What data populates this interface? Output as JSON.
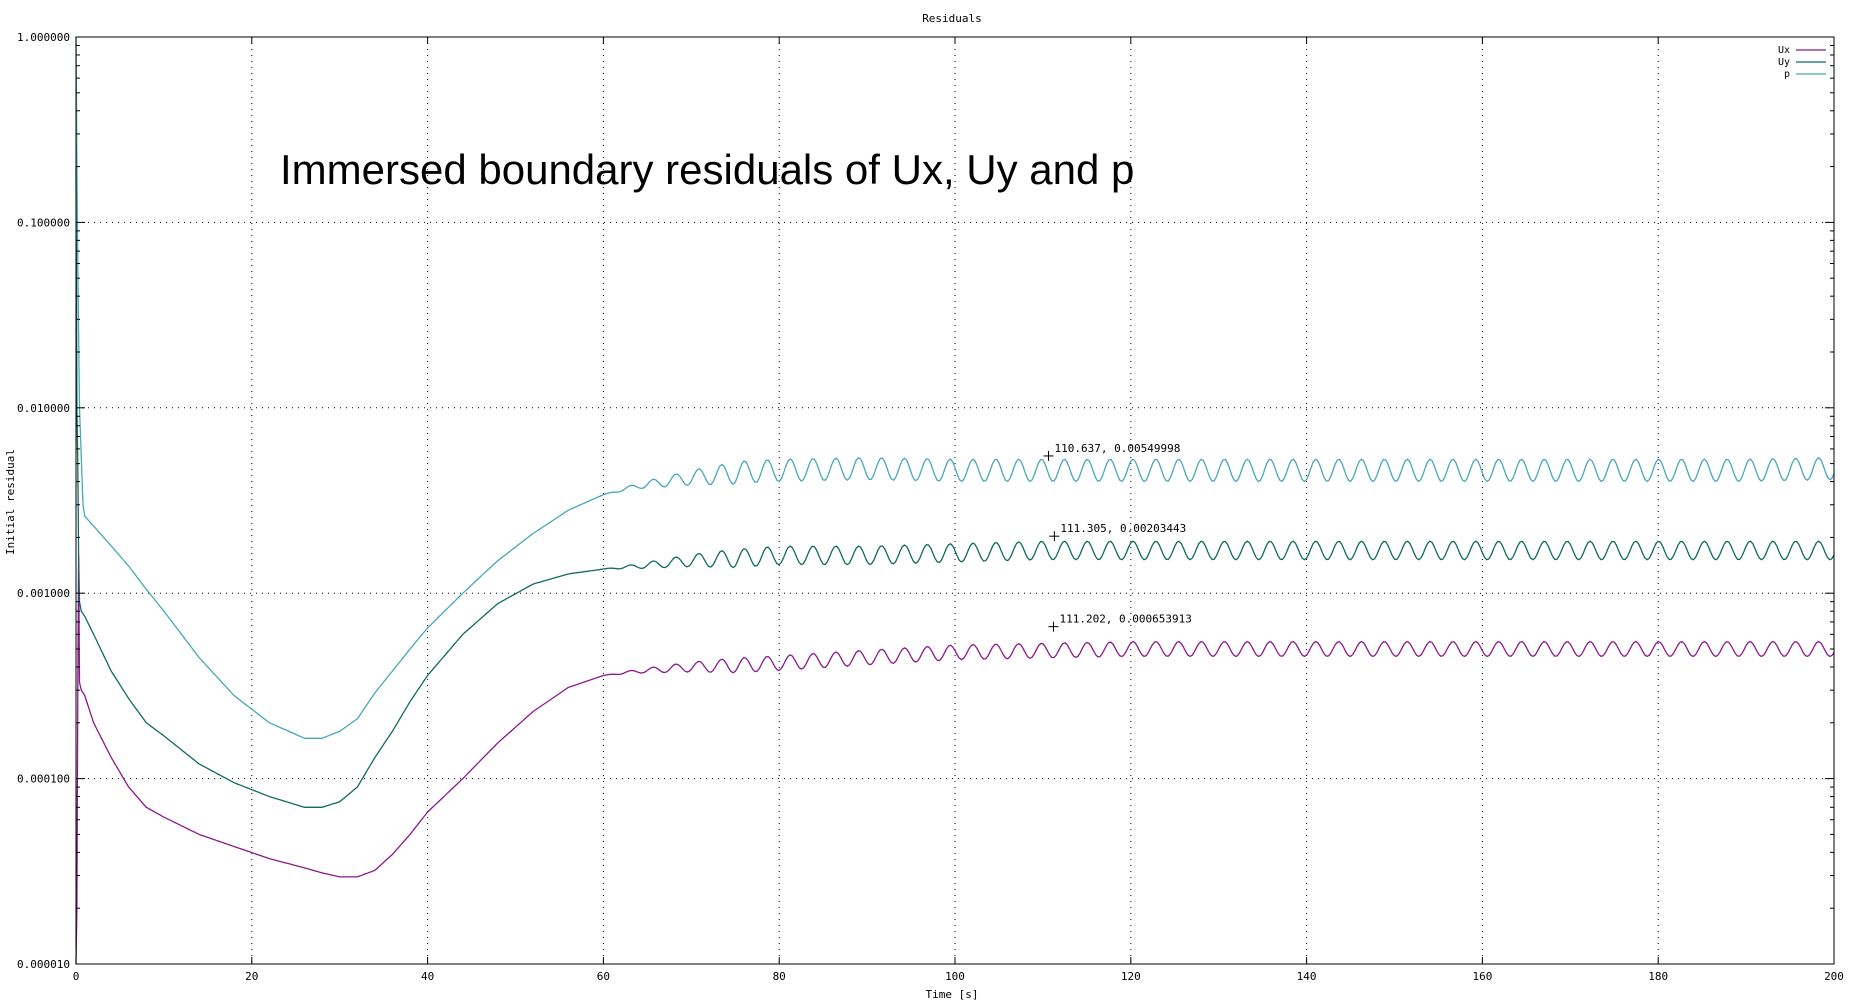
{
  "chart_data": {
    "type": "line",
    "title": "Residuals",
    "xlabel": "Time [s]",
    "ylabel": "Initial residual",
    "annotation_text": "Immersed boundary residuals of Ux, Uy and p",
    "xlim": [
      0,
      200
    ],
    "ylim": [
      1e-05,
      1
    ],
    "yscale": "log",
    "grid": true,
    "legend_position": "top-right",
    "x_ticks": [
      "0",
      "20",
      "40",
      "60",
      "80",
      "100",
      "120",
      "140",
      "160",
      "180",
      "200"
    ],
    "x_tick_values": [
      0,
      20,
      40,
      60,
      80,
      100,
      120,
      140,
      160,
      180,
      200
    ],
    "y_ticks": [
      "1.000000",
      "0.100000",
      "0.010000",
      "0.001000",
      "0.000100",
      "0.000010"
    ],
    "y_tick_values": [
      1,
      0.1,
      0.01,
      0.001,
      0.0001,
      1e-05
    ],
    "series": [
      {
        "name": "Ux",
        "color": "#8b1a89",
        "x": [
          0,
          0.1,
          0.2,
          0.3,
          0.4,
          0.6,
          1,
          2,
          4,
          6,
          8,
          10,
          14,
          18,
          22,
          26,
          28,
          30,
          32,
          34,
          36,
          38,
          40,
          44,
          48,
          52,
          56,
          60,
          64,
          70,
          76,
          80,
          90,
          100,
          110,
          120,
          130,
          140,
          150,
          160,
          170,
          180,
          190,
          200
        ],
        "y": [
          1e-05,
          2e-05,
          0.0003,
          0.0016,
          0.00033,
          0.0003,
          0.00028,
          0.0002,
          0.00013,
          9e-05,
          7e-05,
          6.2e-05,
          5e-05,
          4.3e-05,
          3.7e-05,
          3.3e-05,
          3.1e-05,
          2.95e-05,
          2.95e-05,
          3.2e-05,
          3.9e-05,
          5e-05,
          6.6e-05,
          0.0001,
          0.000156,
          0.00023,
          0.00031,
          0.00036,
          0.00038,
          0.0004,
          0.00041,
          0.00042,
          0.00045,
          0.00048,
          0.00049,
          0.0005,
          0.0005,
          0.0005,
          0.0005,
          0.0005,
          0.0005,
          0.0005,
          0.0005,
          0.0005
        ],
        "wave": 0.04
      },
      {
        "name": "Uy",
        "color": "#106a5e",
        "x": [
          0,
          0.1,
          0.2,
          0.3,
          0.4,
          0.6,
          1,
          2,
          4,
          6,
          8,
          10,
          14,
          18,
          22,
          26,
          28,
          30,
          32,
          34,
          36,
          38,
          40,
          44,
          48,
          52,
          56,
          60,
          64,
          70,
          76,
          80,
          90,
          100,
          110,
          120,
          130,
          140,
          150,
          160,
          170,
          180,
          190,
          200
        ],
        "y": [
          0.2,
          0.01,
          0.005,
          0.0016,
          0.0009,
          0.0008,
          0.00075,
          0.0006,
          0.00038,
          0.00027,
          0.0002,
          0.00017,
          0.00012,
          9.5e-05,
          8e-05,
          7e-05,
          7e-05,
          7.5e-05,
          9e-05,
          0.00013,
          0.00018,
          0.00026,
          0.00036,
          0.0006,
          0.00088,
          0.00112,
          0.00127,
          0.00135,
          0.0014,
          0.0015,
          0.00155,
          0.0016,
          0.0016,
          0.00165,
          0.0017,
          0.0017,
          0.0017,
          0.0017,
          0.0017,
          0.0017,
          0.0017,
          0.0017,
          0.0017,
          0.0017
        ],
        "wave": 0.05
      },
      {
        "name": "p",
        "color": "#48a8b8",
        "x": [
          0,
          0.05,
          0.1,
          0.2,
          0.4,
          0.8,
          1,
          2,
          4,
          6,
          8,
          10,
          14,
          18,
          22,
          26,
          28,
          30,
          32,
          34,
          36,
          38,
          40,
          44,
          48,
          52,
          56,
          60,
          64,
          70,
          76,
          80,
          90,
          100,
          110,
          120,
          130,
          140,
          150,
          160,
          170,
          180,
          190,
          200
        ],
        "y": [
          1,
          0.5,
          0.2,
          0.06,
          0.01,
          0.003,
          0.0026,
          0.0023,
          0.0018,
          0.0014,
          0.00105,
          0.0008,
          0.00045,
          0.00028,
          0.0002,
          0.000165,
          0.000165,
          0.00018,
          0.00021,
          0.00029,
          0.00038,
          0.0005,
          0.00065,
          0.001,
          0.0015,
          0.0021,
          0.0028,
          0.0034,
          0.0038,
          0.0042,
          0.0045,
          0.0046,
          0.0047,
          0.0046,
          0.0046,
          0.0046,
          0.0046,
          0.0046,
          0.0046,
          0.0046,
          0.0046,
          0.0046,
          0.0046,
          0.0047
        ],
        "wave": 0.06
      }
    ],
    "markers": [
      {
        "x": 110.637,
        "y": 0.0055,
        "label": "110.637,  0.00549998"
      },
      {
        "x": 111.305,
        "y": 0.00203,
        "label": "111.305,  0.00203443"
      },
      {
        "x": 111.202,
        "y": 0.00066,
        "label": "111.202,  0.000653913"
      }
    ]
  }
}
